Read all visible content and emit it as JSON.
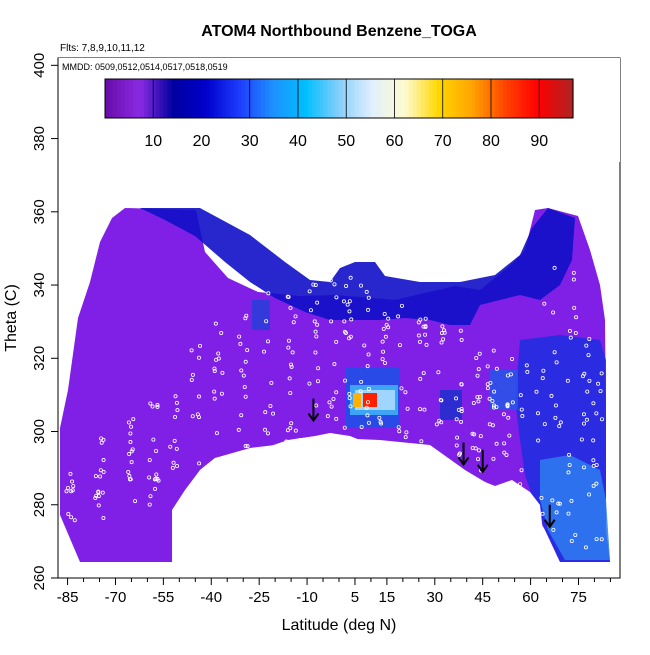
{
  "chart_data": {
    "type": "heatmap",
    "title": "ATOM4 Northbound Benzene_TOGA",
    "subtitle_flights": "Flts: 7,8,9,10,11,12",
    "subtitle_dates": "MMDD: 0509,0512,0514,0517,0518,0519",
    "xlabel": "Latitude (deg N)",
    "ylabel": "Theta (C)",
    "xlim": [
      -88,
      88
    ],
    "ylim": [
      260,
      402
    ],
    "x_ticks": [
      -85,
      -70,
      -55,
      -40,
      -25,
      -10,
      5,
      15,
      30,
      45,
      60,
      75
    ],
    "y_ticks": [
      260,
      280,
      300,
      320,
      340,
      360,
      380,
      400
    ],
    "colorbar": {
      "min": 0,
      "max": 97,
      "ticks": [
        10,
        20,
        30,
        40,
        50,
        60,
        70,
        80,
        90
      ],
      "colors": [
        "#6a0dad",
        "#8a2be2",
        "#0000a0",
        "#0000cd",
        "#1e3cff",
        "#1e90ff",
        "#00bfff",
        "#87cefa",
        "#e0f0ff",
        "#fffacd",
        "#ffd700",
        "#ffa500",
        "#ff4500",
        "#ff0000",
        "#b22222"
      ]
    },
    "arrows": [
      {
        "lat": -8,
        "theta": 303
      },
      {
        "lat": 39,
        "theta": 291
      },
      {
        "lat": 45,
        "theta": 289
      },
      {
        "lat": 66,
        "theta": 274
      }
    ],
    "high_cells": [
      {
        "lat": 5,
        "theta": 309,
        "value": 65
      },
      {
        "lat": 9,
        "theta": 309,
        "value": 80
      }
    ]
  }
}
